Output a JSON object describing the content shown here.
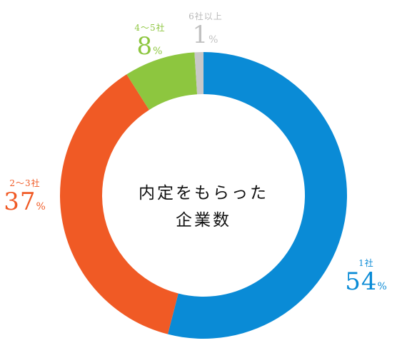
{
  "chart_data": {
    "type": "donut",
    "center_title": [
      "内定をもらった",
      "企業数"
    ],
    "unit": "%",
    "slices": [
      {
        "label": "1社",
        "value": 54,
        "color": "#0a8bd6"
      },
      {
        "label": "2〜3社",
        "value": 37,
        "color": "#f05a25"
      },
      {
        "label": "4〜5社",
        "value": 8,
        "color": "#8dc63f"
      },
      {
        "label": "6社以上",
        "value": 1,
        "color": "#c8c8c8"
      }
    ]
  }
}
